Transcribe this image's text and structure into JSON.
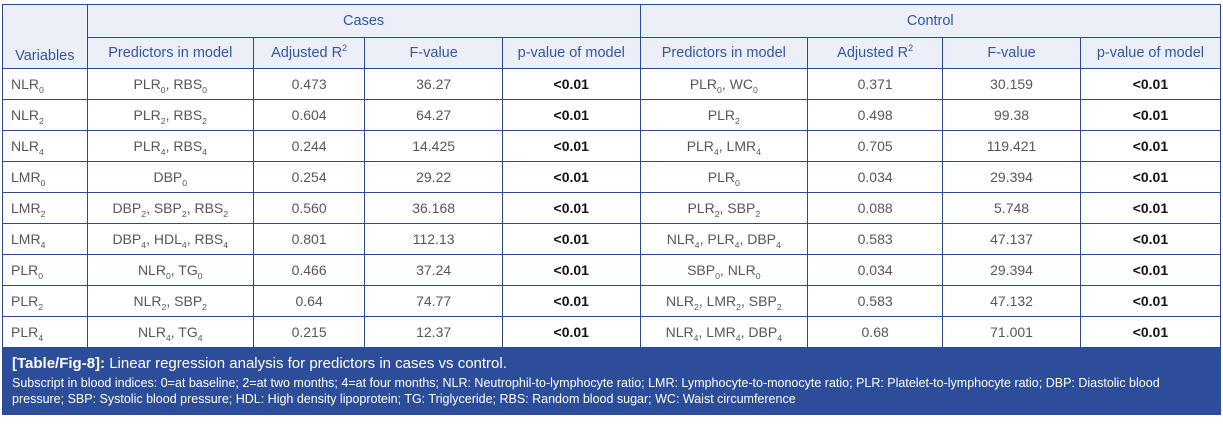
{
  "table": {
    "groups": [
      "Cases",
      "Control"
    ],
    "columns": [
      "Variables",
      "Predictors in model",
      "Adjusted R^2",
      "F-value",
      "p-value of model",
      "Predictors in model",
      "Adjusted R^2",
      "F-value",
      "p-value of model"
    ],
    "rows": [
      {
        "variable": "NLR_0",
        "cases": {
          "predictors": "PLR_0, RBS_0",
          "adjusted_r2": "0.473",
          "f_value": "36.27",
          "p_value": "<0.01"
        },
        "control": {
          "predictors": "PLR_0, WC_0",
          "adjusted_r2": "0.371",
          "f_value": "30.159",
          "p_value": "<0.01"
        }
      },
      {
        "variable": "NLR_2",
        "cases": {
          "predictors": "PLR_2, RBS_2",
          "adjusted_r2": "0.604",
          "f_value": "64.27",
          "p_value": "<0.01"
        },
        "control": {
          "predictors": "PLR_2",
          "adjusted_r2": "0.498",
          "f_value": "99.38",
          "p_value": "<0.01"
        }
      },
      {
        "variable": "NLR_4",
        "cases": {
          "predictors": "PLR_4, RBS_4",
          "adjusted_r2": "0.244",
          "f_value": "14.425",
          "p_value": "<0.01"
        },
        "control": {
          "predictors": "PLR_4, LMR_4",
          "adjusted_r2": "0.705",
          "f_value": "119.421",
          "p_value": "<0.01"
        }
      },
      {
        "variable": "LMR_0",
        "cases": {
          "predictors": "DBP_0",
          "adjusted_r2": "0.254",
          "f_value": "29.22",
          "p_value": "<0.01"
        },
        "control": {
          "predictors": "PLR_0",
          "adjusted_r2": "0.034",
          "f_value": "29.394",
          "p_value": "<0.01"
        }
      },
      {
        "variable": "LMR_2",
        "cases": {
          "predictors": "DBP_2, SBP_2, RBS_2",
          "adjusted_r2": "0.560",
          "f_value": "36.168",
          "p_value": "<0.01"
        },
        "control": {
          "predictors": "PLR_2, SBP_2",
          "adjusted_r2": "0.088",
          "f_value": "5.748",
          "p_value": "<0.01"
        }
      },
      {
        "variable": "LMR_4",
        "cases": {
          "predictors": "DBP_4, HDL_4, RBS_4",
          "adjusted_r2": "0.801",
          "f_value": "112.13",
          "p_value": "<0.01"
        },
        "control": {
          "predictors": "NLR_4, PLR_4, DBP_4",
          "adjusted_r2": "0.583",
          "f_value": "47.137",
          "p_value": "<0.01"
        }
      },
      {
        "variable": "PLR_0",
        "cases": {
          "predictors": "NLR_0, TG_0",
          "adjusted_r2": "0.466",
          "f_value": "37.24",
          "p_value": "<0.01"
        },
        "control": {
          "predictors": "SBP_0, NLR_0",
          "adjusted_r2": "0.034",
          "f_value": "29.394",
          "p_value": "<0.01"
        }
      },
      {
        "variable": "PLR_2",
        "cases": {
          "predictors": "NLR_2, SBP_2",
          "adjusted_r2": "0.64",
          "f_value": "74.77",
          "p_value": "<0.01"
        },
        "control": {
          "predictors": "NLR_2, LMR_2, SBP_2",
          "adjusted_r2": "0.583",
          "f_value": "47.132",
          "p_value": "<0.01"
        }
      },
      {
        "variable": "PLR_4",
        "cases": {
          "predictors": "NLR_4, TG_4",
          "adjusted_r2": "0.215",
          "f_value": "12.37",
          "p_value": "<0.01"
        },
        "control": {
          "predictors": "NLR_4, LMR_4, DBP_4",
          "adjusted_r2": "0.68",
          "f_value": "71.001",
          "p_value": "<0.01"
        }
      }
    ]
  },
  "footer": {
    "label": "[Table/Fig-8]:",
    "caption": "Linear regression analysis for predictors in cases vs control.",
    "footnote": "Subscript in blood indices: 0=at baseline; 2=at two months; 4=at four months; NLR: Neutrophil-to-lymphocyte ratio; LMR: Lymphocyte-to-monocyte ratio; PLR: Platelet-to-lymphocyte ratio; DBP: Diastolic blood pressure; SBP: Systolic blood pressure; HDL: High density lipoprotein; TG: Triglyceride; RBS: Random blood sugar; WC: Waist circumference"
  },
  "colors": {
    "header_background": "#edeff8",
    "header_text": "#3355a5",
    "border": "#2a4a8c",
    "body_text": "#56575b",
    "p_value_text": "#141414",
    "footer_background": "#2b4d9a",
    "footer_text": "#ffffff"
  }
}
